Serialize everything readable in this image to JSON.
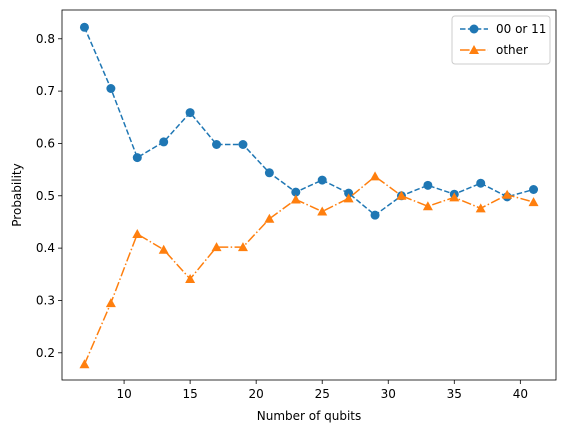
{
  "chart_data": {
    "type": "line",
    "title": "",
    "xlabel": "Number of qubits",
    "ylabel": "Probability",
    "xlim": [
      5.3,
      42.7
    ],
    "ylim": [
      0.148,
      0.855
    ],
    "xticks": [
      10,
      15,
      20,
      25,
      30,
      35,
      40
    ],
    "xtick_labels": [
      "10",
      "15",
      "20",
      "25",
      "30",
      "35",
      "40"
    ],
    "yticks": [
      0.2,
      0.3,
      0.4,
      0.5,
      0.6,
      0.7,
      0.8
    ],
    "ytick_labels": [
      "0.2",
      "0.3",
      "0.4",
      "0.5",
      "0.6",
      "0.7",
      "0.8"
    ],
    "grid": false,
    "legend": "top-right",
    "x": [
      7,
      9,
      11,
      13,
      15,
      17,
      19,
      21,
      23,
      25,
      27,
      29,
      31,
      33,
      35,
      37,
      39,
      41
    ],
    "series": [
      {
        "name": "00 or 11",
        "color": "#1f77b4",
        "marker": "circle",
        "line_style": "dashed",
        "values": [
          0.822,
          0.705,
          0.573,
          0.603,
          0.659,
          0.598,
          0.598,
          0.544,
          0.507,
          0.53,
          0.505,
          0.463,
          0.5,
          0.52,
          0.503,
          0.524,
          0.498,
          0.512
        ]
      },
      {
        "name": "other",
        "color": "#ff7f0e",
        "marker": "triangle",
        "line_style": "dash-dot",
        "values": [
          0.178,
          0.295,
          0.427,
          0.397,
          0.341,
          0.402,
          0.402,
          0.456,
          0.493,
          0.47,
          0.495,
          0.537,
          0.5,
          0.48,
          0.497,
          0.476,
          0.502,
          0.488
        ]
      }
    ]
  }
}
